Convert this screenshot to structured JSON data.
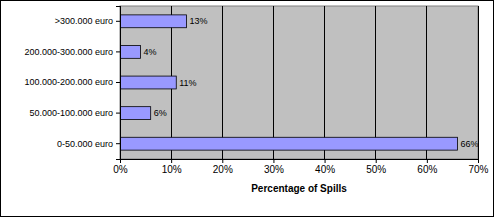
{
  "chart_data": {
    "type": "bar",
    "orientation": "horizontal",
    "categories": [
      ">300.000 euro",
      "200.000-300.000 euro",
      "100.000-200.000 euro",
      "50.000-100.000 euro",
      "0-50.000 euro"
    ],
    "values": [
      13,
      4,
      11,
      6,
      66
    ],
    "value_labels": [
      "13%",
      "4%",
      "11%",
      "6%",
      "66%"
    ],
    "data_labels": true,
    "color": "#9999ff",
    "x_label": "Percentage of Spills",
    "xlim": [
      0,
      70
    ],
    "xticks": [
      {
        "value": 0,
        "label": "0%"
      },
      {
        "value": 10,
        "label": "10%"
      },
      {
        "value": 20,
        "label": "20%"
      },
      {
        "value": 30,
        "label": "30%"
      },
      {
        "value": 40,
        "label": "40%"
      },
      {
        "value": 50,
        "label": "50%"
      },
      {
        "value": 60,
        "label": "60%"
      },
      {
        "value": 70,
        "label": "70%"
      }
    ],
    "grid": true
  }
}
